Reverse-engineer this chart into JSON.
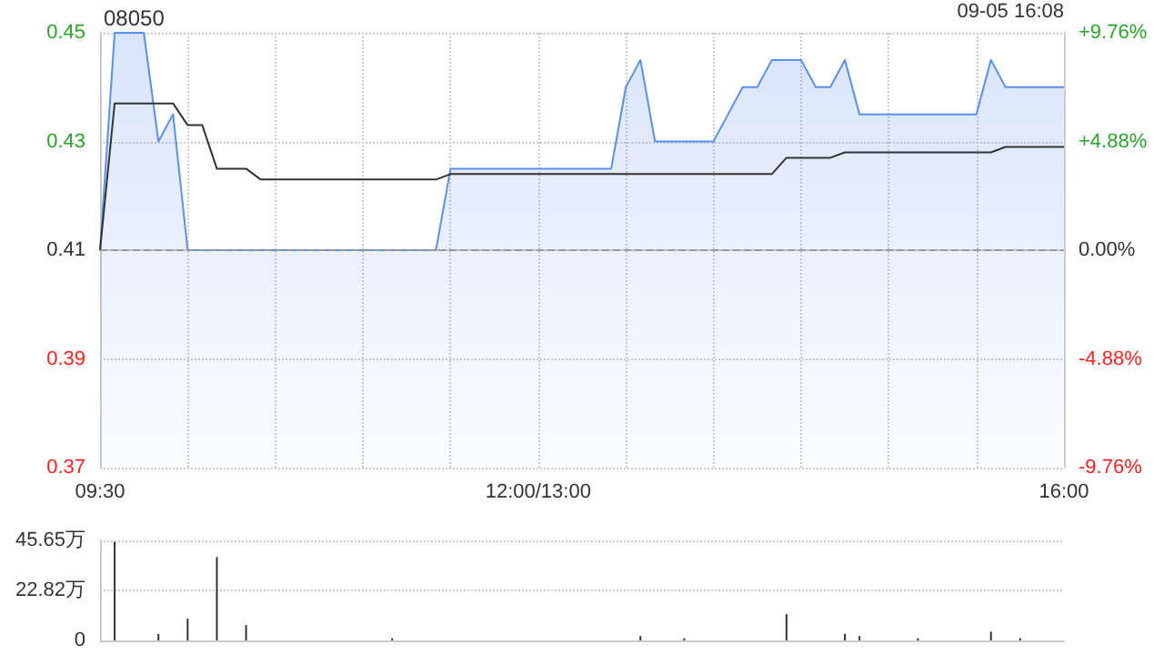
{
  "chart_data": [
    {
      "type": "area",
      "title": "08050",
      "annotations": [
        "09-05 16:08"
      ],
      "categories": [
        "09:30",
        null,
        null,
        null,
        null,
        null,
        null,
        null,
        null,
        null,
        null,
        null,
        null,
        null,
        null,
        null,
        null,
        null,
        null,
        null,
        null,
        null,
        null,
        null,
        null,
        null,
        null,
        null,
        null,
        null,
        "12:00/13:00",
        null,
        null,
        null,
        null,
        null,
        null,
        null,
        null,
        null,
        null,
        null,
        null,
        null,
        null,
        null,
        null,
        null,
        null,
        null,
        null,
        null,
        null,
        null,
        null,
        null,
        null,
        null,
        null,
        null,
        null,
        null,
        null,
        null,
        null,
        null,
        "16:00"
      ],
      "ylim": [
        0.37,
        0.45
      ],
      "yticks": [
        0.37,
        0.39,
        0.41,
        0.43,
        0.45
      ],
      "y2lim": [
        -9.76,
        9.76
      ],
      "y2ticks": [
        {
          "value": -9.76,
          "label": "-9.76%"
        },
        {
          "value": -4.88,
          "label": "-4.88%"
        },
        {
          "value": 0,
          "label": "0.00%"
        },
        {
          "value": 4.88,
          "label": "+4.88%"
        },
        {
          "value": 9.76,
          "label": "+9.76%"
        }
      ],
      "grid": true,
      "ref_lines": [
        {
          "axis": "y",
          "value": 0.41,
          "line_style": "dashed",
          "color": "#999999"
        }
      ],
      "series": [
        {
          "type": "area",
          "color": "#5b8ff0",
          "values": [
            0.41,
            0.45,
            0.45,
            0.45,
            0.43,
            0.435,
            0.41,
            0.41,
            0.41,
            0.41,
            0.41,
            0.41,
            0.41,
            0.41,
            0.41,
            0.41,
            0.41,
            0.41,
            0.41,
            0.41,
            0.41,
            0.41,
            0.41,
            0.41,
            0.425,
            0.425,
            0.425,
            0.425,
            0.425,
            0.425,
            0.425,
            0.425,
            0.425,
            0.425,
            0.425,
            0.425,
            0.44,
            0.445,
            0.43,
            0.43,
            0.43,
            0.43,
            0.43,
            0.435,
            0.44,
            0.44,
            0.445,
            0.445,
            0.445,
            0.44,
            0.44,
            0.445,
            0.435,
            0.435,
            0.435,
            0.435,
            0.435,
            0.435,
            0.435,
            0.435,
            0.435,
            0.445,
            0.44,
            0.44,
            0.44,
            0.44,
            0.44
          ]
        },
        {
          "type": "line",
          "color": "#333333",
          "values": [
            0.41,
            0.437,
            0.437,
            0.437,
            0.437,
            0.437,
            0.433,
            0.433,
            0.425,
            0.425,
            0.425,
            0.423,
            0.423,
            0.423,
            0.423,
            0.423,
            0.423,
            0.423,
            0.423,
            0.423,
            0.423,
            0.423,
            0.423,
            0.423,
            0.424,
            0.424,
            0.424,
            0.424,
            0.424,
            0.424,
            0.424,
            0.424,
            0.424,
            0.424,
            0.424,
            0.424,
            0.424,
            0.424,
            0.424,
            0.424,
            0.424,
            0.424,
            0.424,
            0.424,
            0.424,
            0.424,
            0.424,
            0.427,
            0.427,
            0.427,
            0.427,
            0.428,
            0.428,
            0.428,
            0.428,
            0.428,
            0.428,
            0.428,
            0.428,
            0.428,
            0.428,
            0.428,
            0.429,
            0.429,
            0.429,
            0.429,
            0.429
          ]
        }
      ]
    },
    {
      "type": "bar",
      "color": "#333333",
      "tick_labels": "y",
      "grid": "y",
      "categories": [
        null,
        null,
        null,
        null,
        null,
        null,
        null,
        null,
        null,
        null,
        null,
        null,
        null,
        null,
        null,
        null,
        null,
        null,
        null,
        null,
        null,
        null,
        null,
        null,
        null,
        null,
        null,
        null,
        null,
        null,
        null,
        null,
        null,
        null,
        null,
        null,
        null,
        null,
        null,
        null,
        null,
        null,
        null,
        null,
        null,
        null,
        null,
        null,
        null,
        null,
        null,
        null,
        null,
        null,
        null,
        null,
        null,
        null,
        null,
        null,
        null,
        null,
        null,
        null,
        null,
        null,
        null
      ],
      "ylim": [
        0,
        45.65
      ],
      "yticks": [
        0,
        {
          "value": 22.82,
          "label": "22.82万"
        },
        {
          "value": 45.65,
          "label": "45.65万"
        }
      ],
      "values": [
        null,
        45,
        null,
        null,
        3,
        null,
        10,
        null,
        38,
        null,
        7,
        null,
        null,
        null,
        null,
        null,
        null,
        null,
        null,
        null,
        1,
        null,
        null,
        null,
        null,
        null,
        null,
        null,
        null,
        null,
        null,
        null,
        null,
        null,
        null,
        null,
        null,
        2,
        null,
        null,
        1,
        null,
        null,
        null,
        null,
        null,
        null,
        12,
        null,
        null,
        null,
        3,
        2,
        null,
        null,
        null,
        1,
        null,
        null,
        null,
        null,
        4,
        null,
        1,
        null,
        null,
        null
      ]
    }
  ]
}
